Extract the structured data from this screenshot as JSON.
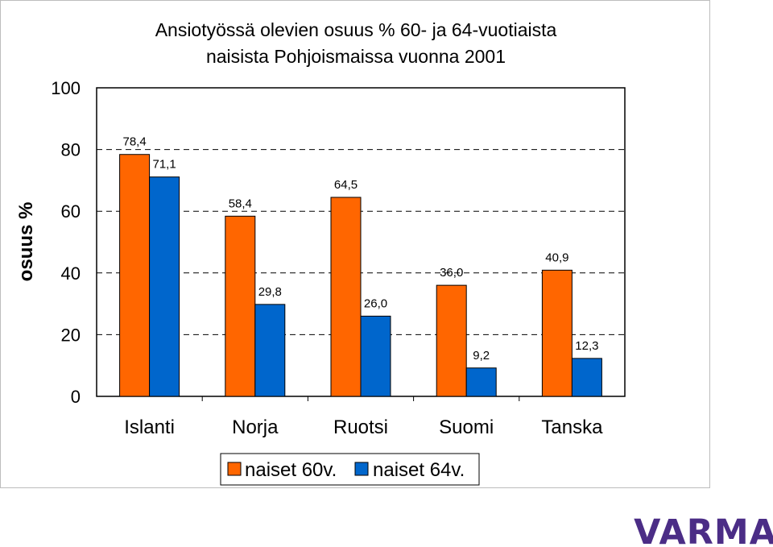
{
  "chart_data": {
    "type": "bar",
    "title": "Ansiotyössä olevien osuus % 60- ja 64-vuotiaista naisista Pohjoismaissa vuonna 2001",
    "title_lines": [
      "Ansiotyössä olevien osuus % 60- ja 64-vuotiaista",
      "naisista Pohjoismaissa vuonna 2001"
    ],
    "ylabel": "osuus %",
    "xlabel": "",
    "ylim": [
      0,
      100
    ],
    "yticks": [
      "0",
      "20",
      "40",
      "60",
      "80",
      "100"
    ],
    "grid": true,
    "legend_position": "bottom",
    "categories": [
      "Islanti",
      "Norja",
      "Ruotsi",
      "Suomi",
      "Tanska"
    ],
    "series": [
      {
        "name": "naiset 60v.",
        "color": "#ff6600",
        "values": [
          78.4,
          58.4,
          64.5,
          36.0,
          40.9
        ],
        "labels": [
          "78,4",
          "58,4",
          "64,5",
          "36,0",
          "40,9"
        ]
      },
      {
        "name": "naiset 64v.",
        "color": "#0066cc",
        "values": [
          71.1,
          29.8,
          26.0,
          9.2,
          12.3
        ],
        "labels": [
          "71,1",
          "29,8",
          "26,0",
          "9,2",
          "12,3"
        ]
      }
    ]
  },
  "logo": {
    "text": "VARMA",
    "color": "#4b2d86"
  }
}
